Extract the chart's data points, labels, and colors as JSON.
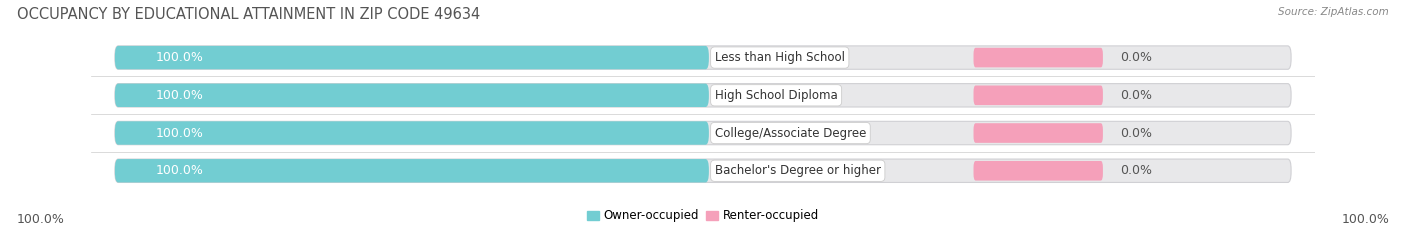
{
  "title": "OCCUPANCY BY EDUCATIONAL ATTAINMENT IN ZIP CODE 49634",
  "source": "Source: ZipAtlas.com",
  "categories": [
    "Less than High School",
    "High School Diploma",
    "College/Associate Degree",
    "Bachelor's Degree or higher"
  ],
  "owner_values": [
    100.0,
    100.0,
    100.0,
    100.0
  ],
  "renter_values": [
    0.0,
    0.0,
    0.0,
    0.0
  ],
  "owner_color": "#72cdd2",
  "renter_color": "#f5a0ba",
  "bar_bg_color": "#e8e8ea",
  "bar_bg_border": "#d0d0d4",
  "owner_label": "Owner-occupied",
  "renter_label": "Renter-occupied",
  "title_fontsize": 10.5,
  "source_fontsize": 7.5,
  "label_fontsize": 9,
  "value_fontsize": 9,
  "bar_label_fontsize": 8.5,
  "background_color": "#ffffff",
  "bar_height": 0.62,
  "figsize": [
    14.06,
    2.33
  ],
  "owner_pct_color": "#ffffff",
  "renter_pct_color": "#555555",
  "cat_label_color": "#333333",
  "title_color": "#555555",
  "source_color": "#888888"
}
